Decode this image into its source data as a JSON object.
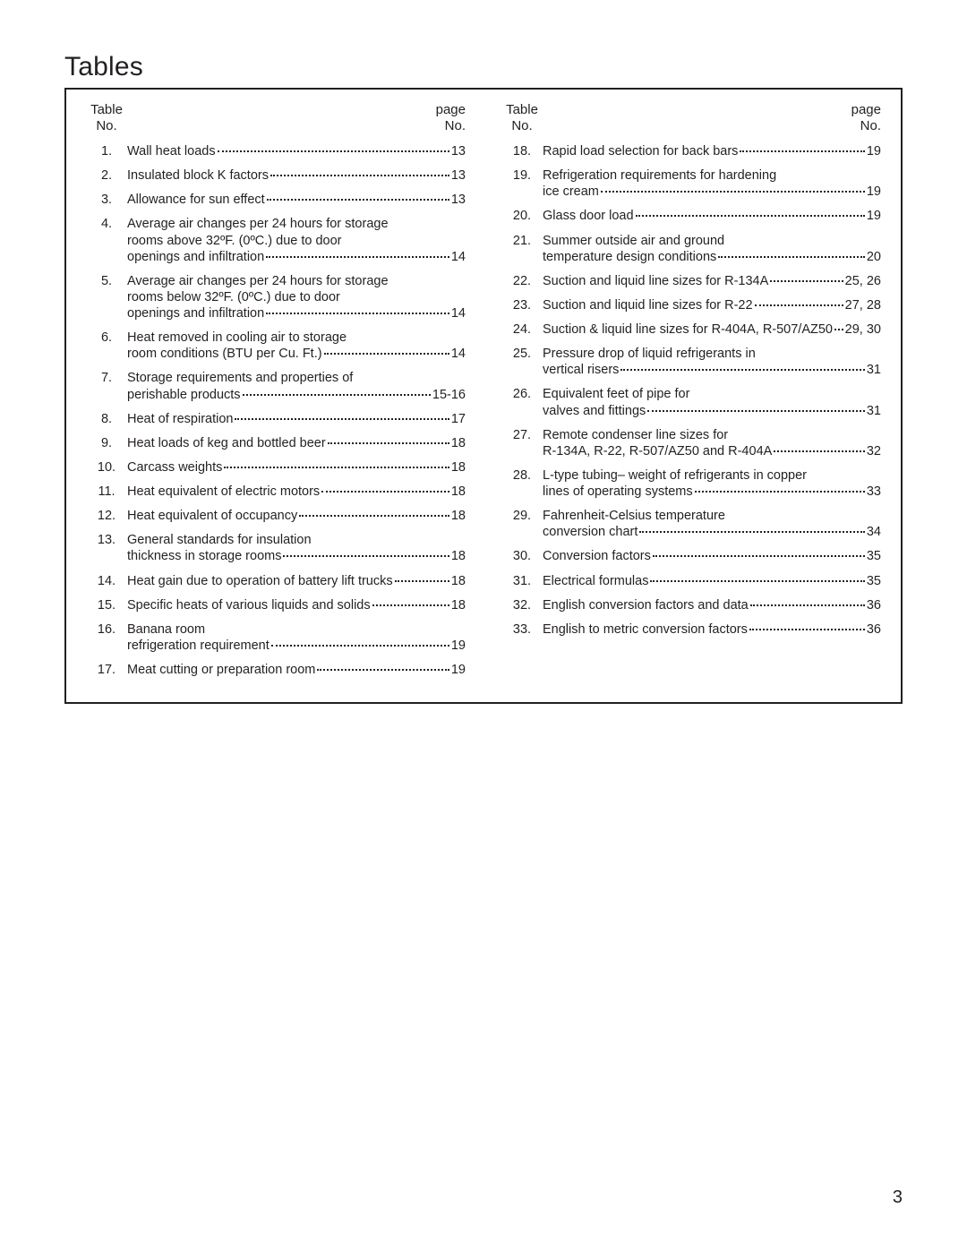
{
  "title": "Tables",
  "page_number": "3",
  "header": {
    "table_no_top": "Table",
    "table_no_bottom": "No.",
    "page_no_top": "page",
    "page_no_bottom": "No."
  },
  "colors": {
    "background": "#ffffff",
    "text": "#231f20",
    "border": "#231f20"
  },
  "typography": {
    "title_fontsize": 30,
    "body_fontsize": 14.5,
    "header_fontsize": 15,
    "pagenum_fontsize": 20,
    "font_family": "Segoe UI / Myriad Pro / Helvetica"
  },
  "left": [
    {
      "no": "1.",
      "lines": [
        "Wall heat loads"
      ],
      "page": "13"
    },
    {
      "no": "2.",
      "lines": [
        "Insulated block K factors"
      ],
      "page": "13"
    },
    {
      "no": "3.",
      "lines": [
        "Allowance for sun effect"
      ],
      "page": " 13"
    },
    {
      "no": "4.",
      "lines": [
        "Average air changes per 24 hours for storage",
        "rooms above 32ºF. (0ºC.) due to door",
        "openings and infiltration"
      ],
      "page": "14"
    },
    {
      "no": "5.",
      "lines": [
        "Average air changes per 24 hours for storage",
        "rooms below 32ºF. (0ºC.) due to door",
        "openings and infiltration"
      ],
      "page": "14"
    },
    {
      "no": "6.",
      "lines": [
        "Heat removed in cooling air to storage",
        "room conditions (BTU per Cu. Ft.)"
      ],
      "page": "14"
    },
    {
      "no": "7.",
      "lines": [
        "Storage requirements and properties of",
        "perishable products"
      ],
      "page": "15-16"
    },
    {
      "no": "8.",
      "lines": [
        "Heat of respiration"
      ],
      "page": "17"
    },
    {
      "no": "9.",
      "lines": [
        "Heat loads of keg and bottled beer"
      ],
      "page": "18"
    },
    {
      "no": "10.",
      "lines": [
        "Carcass weights"
      ],
      "page": "18"
    },
    {
      "no": "11.",
      "lines": [
        "Heat equivalent of electric motors"
      ],
      "page": "18"
    },
    {
      "no": "12.",
      "lines": [
        "Heat equivalent of occupancy"
      ],
      "page": "18"
    },
    {
      "no": "13.",
      "lines": [
        "General standards for insulation",
        "thickness in storage rooms"
      ],
      "page": "18"
    },
    {
      "no": "14.",
      "lines": [
        "Heat gain  due to operation of battery lift trucks"
      ],
      "page": "18"
    },
    {
      "no": "15.",
      "lines": [
        "Specific heats of various liquids and solids"
      ],
      "page": "18"
    },
    {
      "no": "16.",
      "lines": [
        "Banana room",
        "refrigeration requirement"
      ],
      "page": "19"
    },
    {
      "no": "17.",
      "lines": [
        "Meat cutting or preparation room"
      ],
      "page": "19"
    }
  ],
  "right": [
    {
      "no": "18.",
      "lines": [
        "Rapid load selection for back bars"
      ],
      "page": "19"
    },
    {
      "no": "19.",
      "lines": [
        "Refrigeration requirements for hardening",
        "ice cream"
      ],
      "page": "19"
    },
    {
      "no": "20.",
      "lines": [
        "Glass door load"
      ],
      "page": "19"
    },
    {
      "no": "21.",
      "lines": [
        "Summer outside air and ground",
        "temperature design conditions"
      ],
      "page": "20"
    },
    {
      "no": "22.",
      "lines": [
        "Suction and liquid line sizes for R-134A"
      ],
      "page": "25, 26"
    },
    {
      "no": "23.",
      "lines": [
        "Suction and liquid line sizes for R-22"
      ],
      "page": "27, 28"
    },
    {
      "no": "24.",
      "lines": [
        "Suction & liquid line sizes for R-404A, R-507/AZ50"
      ],
      "page": "29, 30"
    },
    {
      "no": "25.",
      "lines": [
        "Pressure drop of liquid refrigerants in",
        "vertical risers"
      ],
      "page": "31"
    },
    {
      "no": "26.",
      "lines": [
        "Equivalent feet of pipe for",
        "valves and fittings"
      ],
      "page": "31"
    },
    {
      "no": "27.",
      "lines": [
        "Remote condenser line sizes for",
        "R-134A, R-22, R-507/AZ50 and R-404A"
      ],
      "page": "32"
    },
    {
      "no": "28.",
      "lines": [
        "L-type tubing– weight of refrigerants in copper",
        "lines of operating systems"
      ],
      "page": "33"
    },
    {
      "no": "29.",
      "lines": [
        "Fahrenheit-Celsius temperature",
        "conversion chart"
      ],
      "page": "34"
    },
    {
      "no": "30.",
      "lines": [
        "Conversion factors"
      ],
      "page": "35"
    },
    {
      "no": "31.",
      "lines": [
        "Electrical formulas"
      ],
      "page": "35"
    },
    {
      "no": "32.",
      "lines": [
        "English conversion factors and data"
      ],
      "page": "36"
    },
    {
      "no": "33.",
      "lines": [
        "English to metric conversion factors"
      ],
      "page": "36"
    }
  ]
}
